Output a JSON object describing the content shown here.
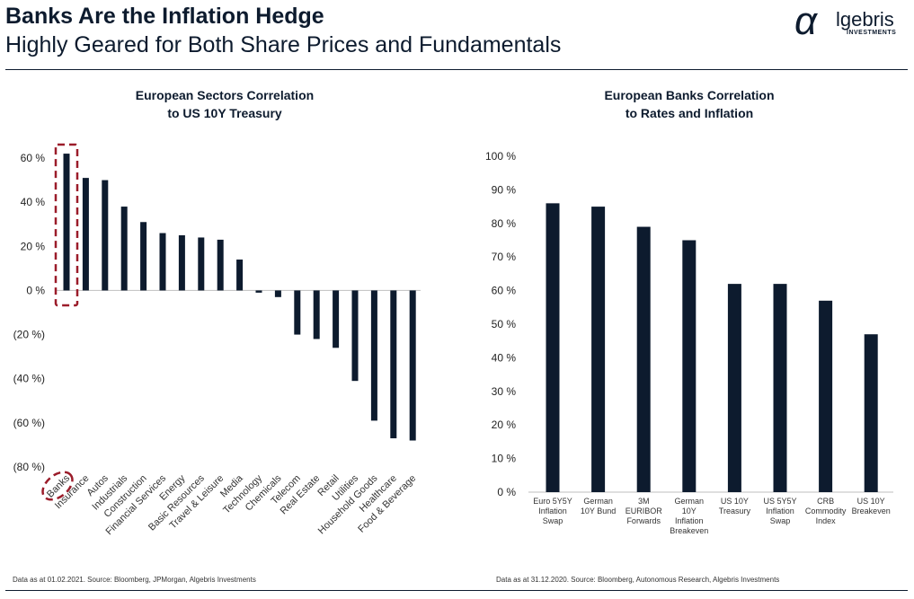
{
  "header": {
    "title": "Banks Are the Inflation Hedge",
    "subtitle": "Highly Geared for Both Share Prices and Fundamentals"
  },
  "logo": {
    "glyph": "α",
    "name": "lgebris",
    "tagline": "INVESTMENTS"
  },
  "colors": {
    "bar": "#0d1b2e",
    "highlight": "#9b1c2a",
    "axis": "#bfbfbf"
  },
  "chart_data": [
    {
      "type": "bar",
      "title_line1": "European Sectors Correlation",
      "title_line2": "to US 10Y Treasury",
      "categories": [
        "Banks",
        "Insurance",
        "Autos",
        "Industrials",
        "Construction",
        "Financial Services",
        "Energy",
        "Basic Resources",
        "Travel & Leisure",
        "Media",
        "Technology",
        "Chemicals",
        "Telecom",
        "Real Estate",
        "Retail",
        "Utilities",
        "Household Goods",
        "Healthcare",
        "Food & Beverage"
      ],
      "values": [
        62,
        51,
        50,
        38,
        31,
        26,
        25,
        24,
        23,
        14,
        -1,
        -3,
        -20,
        -22,
        -26,
        -41,
        -59,
        -67,
        -68
      ],
      "ylim": [
        -80,
        60
      ],
      "yticks": [
        "60 %",
        "40 %",
        "20 %",
        "0 %",
        "(20 %)",
        "(40 %)",
        "(60 %)",
        "(80 %)"
      ],
      "highlight": "Banks",
      "footnote": "Data as at 01.02.2021.  Source:  Bloomberg, JPMorgan, Algebris Investments"
    },
    {
      "type": "bar",
      "title_line1": "European Banks Correlation",
      "title_line2": "to Rates and Inflation",
      "categories": [
        [
          "Euro 5Y5Y",
          "Inflation",
          "Swap"
        ],
        [
          "German",
          "10Y Bund"
        ],
        [
          "3M",
          "EURIBOR",
          "Forwards"
        ],
        [
          "German",
          "10Y",
          "Inflation",
          "Breakeven"
        ],
        [
          "US 10Y",
          "Treasury"
        ],
        [
          "US 5Y5Y",
          "Inflation",
          "Swap"
        ],
        [
          "CRB",
          "Commodity",
          "Index"
        ],
        [
          "US 10Y",
          "Breakeven"
        ]
      ],
      "values": [
        86,
        85,
        79,
        75,
        62,
        62,
        57,
        47
      ],
      "ylim": [
        0,
        100
      ],
      "yticks": [
        "100 %",
        "90 %",
        "80 %",
        "70 %",
        "60 %",
        "50 %",
        "40 %",
        "30 %",
        "20 %",
        "10 %",
        "0 %"
      ],
      "footnote": "Data as at 31.12.2020.  Source:  Bloomberg, Autonomous Research, Algebris Investments"
    }
  ]
}
